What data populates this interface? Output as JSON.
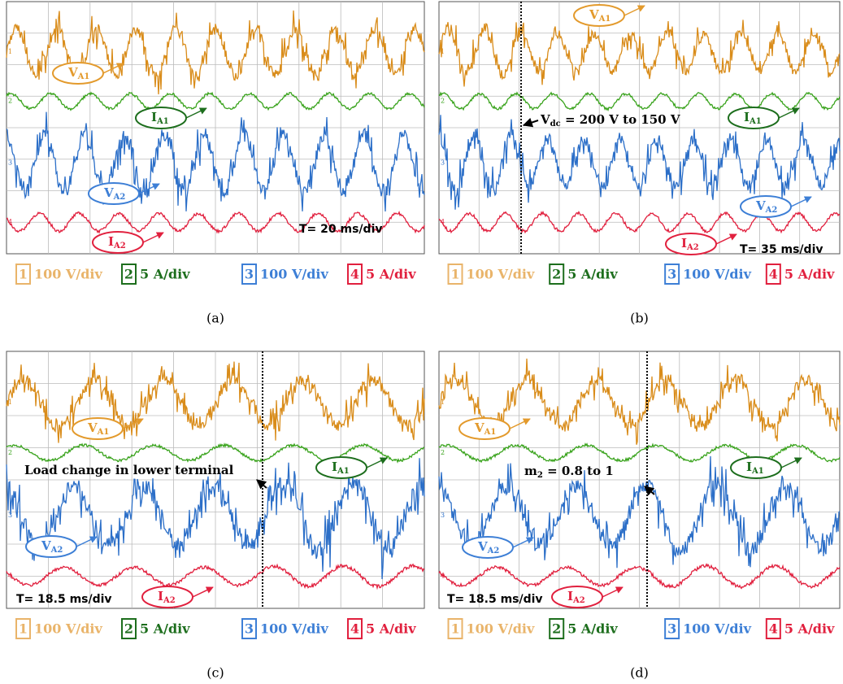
{
  "channels": [
    {
      "number": "1",
      "scale": "100 V/div"
    },
    {
      "number": "2",
      "scale": "5 A/div"
    },
    {
      "number": "3",
      "scale": "100 V/div"
    },
    {
      "number": "4",
      "scale": "5 A/div"
    }
  ],
  "panels": [
    {
      "caption": "(a)",
      "time_scale": "T= 20 ms/div",
      "labels": [
        {
          "main": "V",
          "sub": "A1"
        },
        {
          "main": "I",
          "sub": "A1"
        },
        {
          "main": "V",
          "sub": "A2"
        },
        {
          "main": "I",
          "sub": "A2"
        }
      ]
    },
    {
      "caption": "(b)",
      "time_scale": "T= 35 ms/div",
      "labels": [
        {
          "main": "V",
          "sub": "A1"
        },
        {
          "main": "I",
          "sub": "A1"
        },
        {
          "main": "V",
          "sub": "A2"
        },
        {
          "main": "I",
          "sub": "A2"
        }
      ],
      "note": {
        "main": "V",
        "sub": "dc",
        "rest": " = 200 V to 150 V"
      }
    },
    {
      "caption": "(c)",
      "time_scale": "T= 18.5 ms/div",
      "labels": [
        {
          "main": "V",
          "sub": "A1"
        },
        {
          "main": "I",
          "sub": "A1"
        },
        {
          "main": "V",
          "sub": "A2"
        },
        {
          "main": "I",
          "sub": "A2"
        }
      ],
      "note": {
        "main": "Load change in lower terminal"
      }
    },
    {
      "caption": "(d)",
      "time_scale": "T= 18.5 ms/div",
      "labels": [
        {
          "main": "V",
          "sub": "A1"
        },
        {
          "main": "I",
          "sub": "A1"
        },
        {
          "main": "V",
          "sub": "A2"
        },
        {
          "main": "I",
          "sub": "A2"
        }
      ],
      "note": {
        "main": "m",
        "sub": "2",
        "rest": " = 0.8 to 1"
      }
    }
  ]
}
